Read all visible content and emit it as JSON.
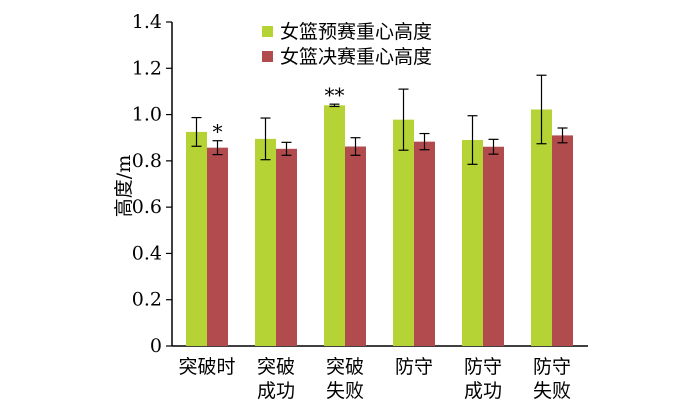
{
  "chart_data": {
    "type": "bar",
    "ylabel": "高度/m",
    "ylim": [
      0,
      1.4
    ],
    "yticks": [
      "0",
      "0.2",
      "0.4",
      "0.6",
      "0.8",
      "1.0",
      "1.2",
      "1.4"
    ],
    "categories": [
      [
        "突破时"
      ],
      [
        "突破",
        "成功"
      ],
      [
        "突破",
        "失败"
      ],
      [
        "防守"
      ],
      [
        "防守",
        "成功"
      ],
      [
        "防守",
        "失败"
      ]
    ],
    "series": [
      {
        "name": "女篮预赛重心高度",
        "color": "#b5d334",
        "values": [
          0.925,
          0.895,
          1.04,
          0.978,
          0.89,
          1.022
        ],
        "errors": [
          0.062,
          0.09,
          0.005,
          0.132,
          0.105,
          0.148
        ]
      },
      {
        "name": "女篮决赛重心高度",
        "color": "#b24b4e",
        "values": [
          0.857,
          0.852,
          0.862,
          0.883,
          0.861,
          0.91
        ],
        "errors": [
          0.03,
          0.028,
          0.038,
          0.035,
          0.032,
          0.032
        ]
      }
    ],
    "annotations": [
      {
        "category_index": 0,
        "series_index": 1,
        "text": "*"
      },
      {
        "category_index": 2,
        "series_index": 0,
        "text": "**"
      }
    ],
    "legend_position": "top",
    "grid": false
  }
}
